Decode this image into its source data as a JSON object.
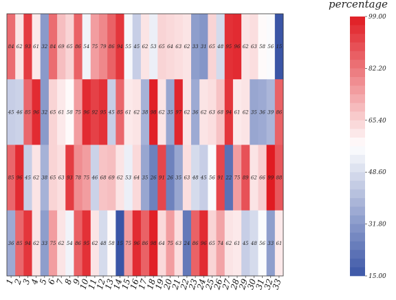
{
  "chart_data": {
    "type": "heatmap",
    "title": "",
    "xlabel": "",
    "ylabel": "",
    "x_categories": [
      "1",
      "2",
      "3",
      "4",
      "5",
      "6",
      "7",
      "8",
      "9",
      "10",
      "11",
      "12",
      "13",
      "14",
      "15",
      "16",
      "17",
      "18",
      "19",
      "20",
      "21",
      "22",
      "23",
      "24",
      "25",
      "26",
      "27",
      "28",
      "29",
      "30",
      "31",
      "32",
      "33"
    ],
    "y_categories": [],
    "rows": [
      [
        84,
        62,
        93,
        61,
        32,
        84,
        69,
        65,
        86,
        54,
        75,
        79,
        86,
        94,
        55,
        45,
        62,
        53,
        65,
        64,
        63,
        62,
        33,
        31,
        65,
        48,
        95,
        96,
        62,
        63,
        58,
        56,
        15
      ],
      [
        45,
        46,
        85,
        96,
        32,
        65,
        61,
        58,
        75,
        96,
        92,
        95,
        45,
        85,
        61,
        62,
        38,
        98,
        62,
        35,
        97,
        62,
        36,
        62,
        63,
        68,
        94,
        61,
        62,
        35,
        36,
        39,
        86
      ],
      [
        85,
        96,
        45,
        62,
        38,
        65,
        63,
        93,
        78,
        75,
        46,
        68,
        69,
        62,
        53,
        64,
        35,
        26,
        91,
        26,
        35,
        63,
        48,
        45,
        56,
        91,
        22,
        75,
        89,
        62,
        66,
        99,
        88
      ],
      [
        36,
        85,
        94,
        62,
        33,
        75,
        62,
        54,
        86,
        95,
        62,
        48,
        58,
        15,
        75,
        96,
        86,
        98,
        64,
        75,
        63,
        24,
        86,
        96,
        65,
        74,
        62,
        61,
        45,
        48,
        56,
        33,
        61
      ]
    ],
    "colorbar": {
      "title": "percentage",
      "min": 15.0,
      "max": 99.0,
      "ticks": [
        "99.00",
        "82.20",
        "65.40",
        "48.60",
        "31.80",
        "15.00"
      ],
      "low_color": "#3a55a6",
      "mid_color": "#ffffff",
      "high_color": "#e01b22"
    },
    "grid": false,
    "legend_position": "right"
  }
}
